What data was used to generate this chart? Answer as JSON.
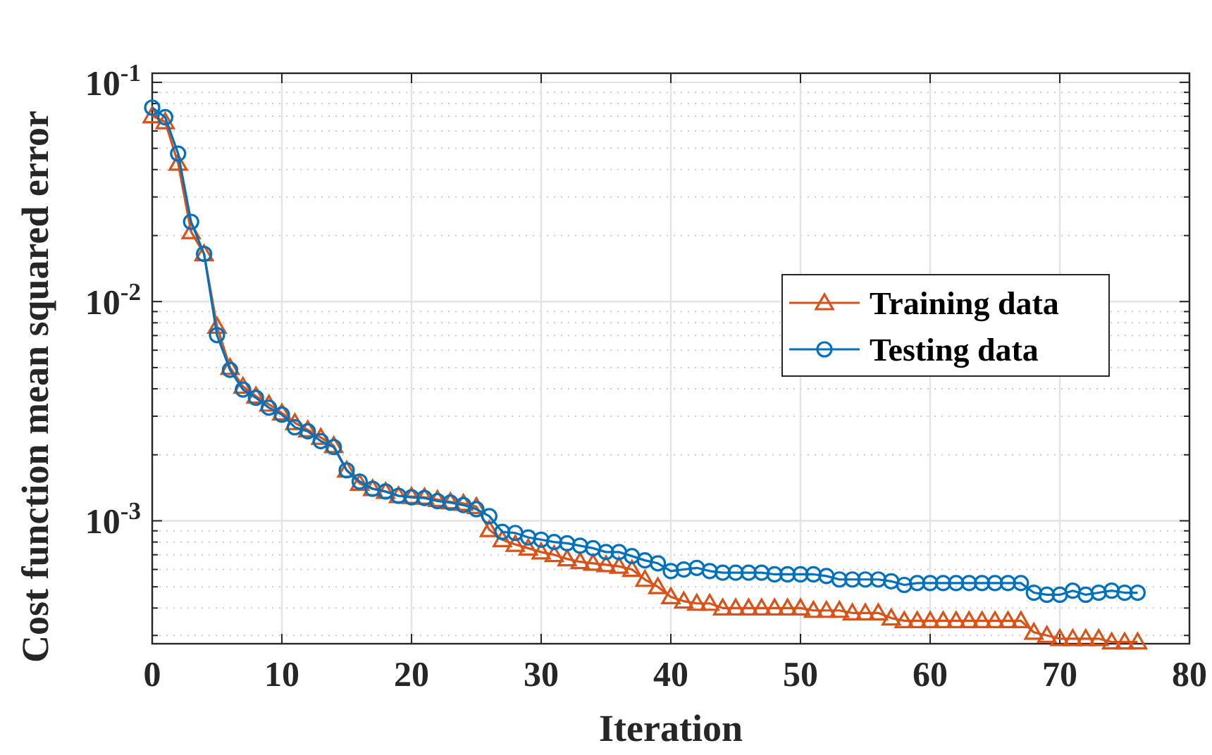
{
  "chart_data": {
    "type": "line",
    "xlabel": "Iteration",
    "ylabel": "Cost function mean squared error",
    "x": [
      0,
      1,
      2,
      3,
      4,
      5,
      6,
      7,
      8,
      9,
      10,
      11,
      12,
      13,
      14,
      15,
      16,
      17,
      18,
      19,
      20,
      21,
      22,
      23,
      24,
      25,
      26,
      27,
      28,
      29,
      30,
      31,
      32,
      33,
      34,
      35,
      36,
      37,
      38,
      39,
      40,
      41,
      42,
      43,
      44,
      45,
      46,
      47,
      48,
      49,
      50,
      51,
      52,
      53,
      54,
      55,
      56,
      57,
      58,
      59,
      60,
      61,
      62,
      63,
      64,
      65,
      66,
      67,
      68,
      69,
      70,
      71,
      72,
      73,
      74,
      75,
      76
    ],
    "series": [
      {
        "name": "Training data",
        "color": "#d95319",
        "marker": "triangle",
        "values": [
          0.0703,
          0.066,
          0.0427,
          0.0208,
          0.0165,
          0.0077,
          0.005,
          0.0041,
          0.0037,
          0.0034,
          0.0031,
          0.0028,
          0.0026,
          0.0024,
          0.0022,
          0.0017,
          0.00148,
          0.0014,
          0.00136,
          0.0013,
          0.00129,
          0.00128,
          0.00125,
          0.00122,
          0.0012,
          0.00116,
          0.00091,
          0.00082,
          0.00078,
          0.00075,
          0.00072,
          0.0007,
          0.00067,
          0.00065,
          0.00064,
          0.00063,
          0.00062,
          0.0006,
          0.00054,
          0.0005,
          0.00045,
          0.00043,
          0.00042,
          0.00042,
          0.0004,
          0.0004,
          0.0004,
          0.0004,
          0.0004,
          0.0004,
          0.0004,
          0.00039,
          0.00039,
          0.00039,
          0.00038,
          0.00038,
          0.00038,
          0.00036,
          0.00035,
          0.00035,
          0.00035,
          0.00035,
          0.00035,
          0.00035,
          0.00035,
          0.00035,
          0.00035,
          0.00035,
          0.00031,
          0.0003,
          0.00029,
          0.00029,
          0.00029,
          0.00029,
          0.00028,
          0.00028,
          0.00028
        ]
      },
      {
        "name": "Testing data",
        "color": "#0072bd",
        "marker": "circle",
        "values": [
          0.0767,
          0.0693,
          0.0473,
          0.0231,
          0.0165,
          0.00703,
          0.00488,
          0.00397,
          0.00364,
          0.00328,
          0.00305,
          0.00267,
          0.00256,
          0.00231,
          0.00217,
          0.0017,
          0.00151,
          0.0014,
          0.00136,
          0.0013,
          0.00128,
          0.00127,
          0.00123,
          0.00121,
          0.00118,
          0.00113,
          0.00105,
          0.00089,
          0.00088,
          0.00084,
          0.00082,
          0.0008,
          0.00079,
          0.00077,
          0.00075,
          0.00072,
          0.00072,
          0.00069,
          0.00066,
          0.00064,
          0.00059,
          0.0006,
          0.00061,
          0.00059,
          0.00058,
          0.00058,
          0.00058,
          0.00058,
          0.00057,
          0.00057,
          0.00057,
          0.00057,
          0.00056,
          0.00054,
          0.00054,
          0.00054,
          0.00054,
          0.00053,
          0.00051,
          0.00052,
          0.00052,
          0.00052,
          0.00052,
          0.00052,
          0.00052,
          0.00052,
          0.00052,
          0.00052,
          0.00047,
          0.00046,
          0.00046,
          0.00048,
          0.00046,
          0.00047,
          0.00048,
          0.00047,
          0.00047
        ]
      }
    ],
    "log": "y",
    "xlim": [
      0,
      80
    ],
    "xticks": [
      0,
      10,
      20,
      30,
      40,
      50,
      60,
      70,
      80
    ],
    "ylim": [
      0.000275,
      0.11
    ],
    "yticks": [
      {
        "value": 0.001,
        "label": "10$^{-3}$"
      },
      {
        "value": 0.01,
        "label": "10$^{-2}$"
      },
      {
        "value": 0.1,
        "label": "10$^{-1}$"
      }
    ],
    "grid": true,
    "legend": "right",
    "line_style": "solid"
  }
}
